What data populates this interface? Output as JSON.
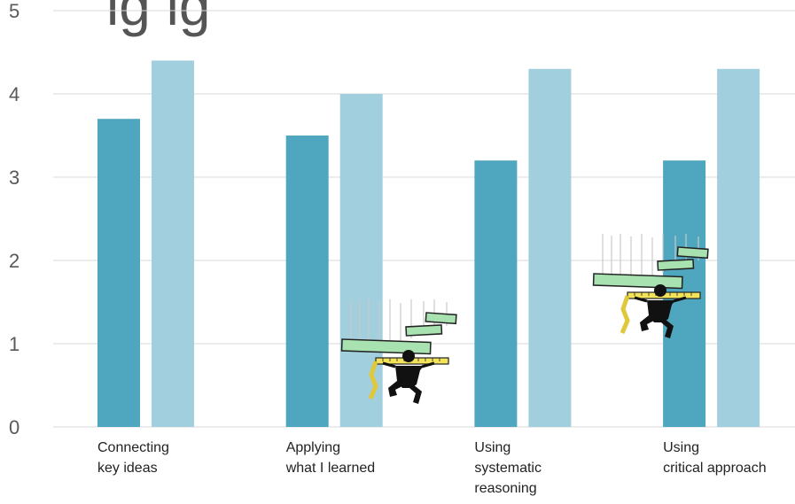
{
  "chart_data": {
    "type": "bar",
    "title": "ig                    ig",
    "categories": [
      [
        "Connecting",
        "key ideas"
      ],
      [
        "Applying",
        "what I learned"
      ],
      [
        "Using",
        "systematic",
        "reasoning"
      ],
      [
        "Using",
        "critical approach"
      ]
    ],
    "series": [
      {
        "values": [
          3.7,
          3.5,
          3.2,
          3.2
        ],
        "color": "#4fa7bf"
      },
      {
        "values": [
          4.4,
          4.0,
          4.3,
          4.3
        ],
        "color": "#a2cfdd"
      }
    ],
    "y_ticks": [
      "0",
      "1",
      "2",
      "3",
      "4",
      "5"
    ],
    "ylim": [
      0,
      5
    ],
    "grid": true,
    "legend": "none"
  },
  "decorations": [
    {
      "name": "weightlifter-clipart-icon",
      "label": "figure lifting stacked green bars"
    },
    {
      "name": "weightlifter-clipart-icon",
      "label": "figure lifting stacked green bars"
    }
  ]
}
